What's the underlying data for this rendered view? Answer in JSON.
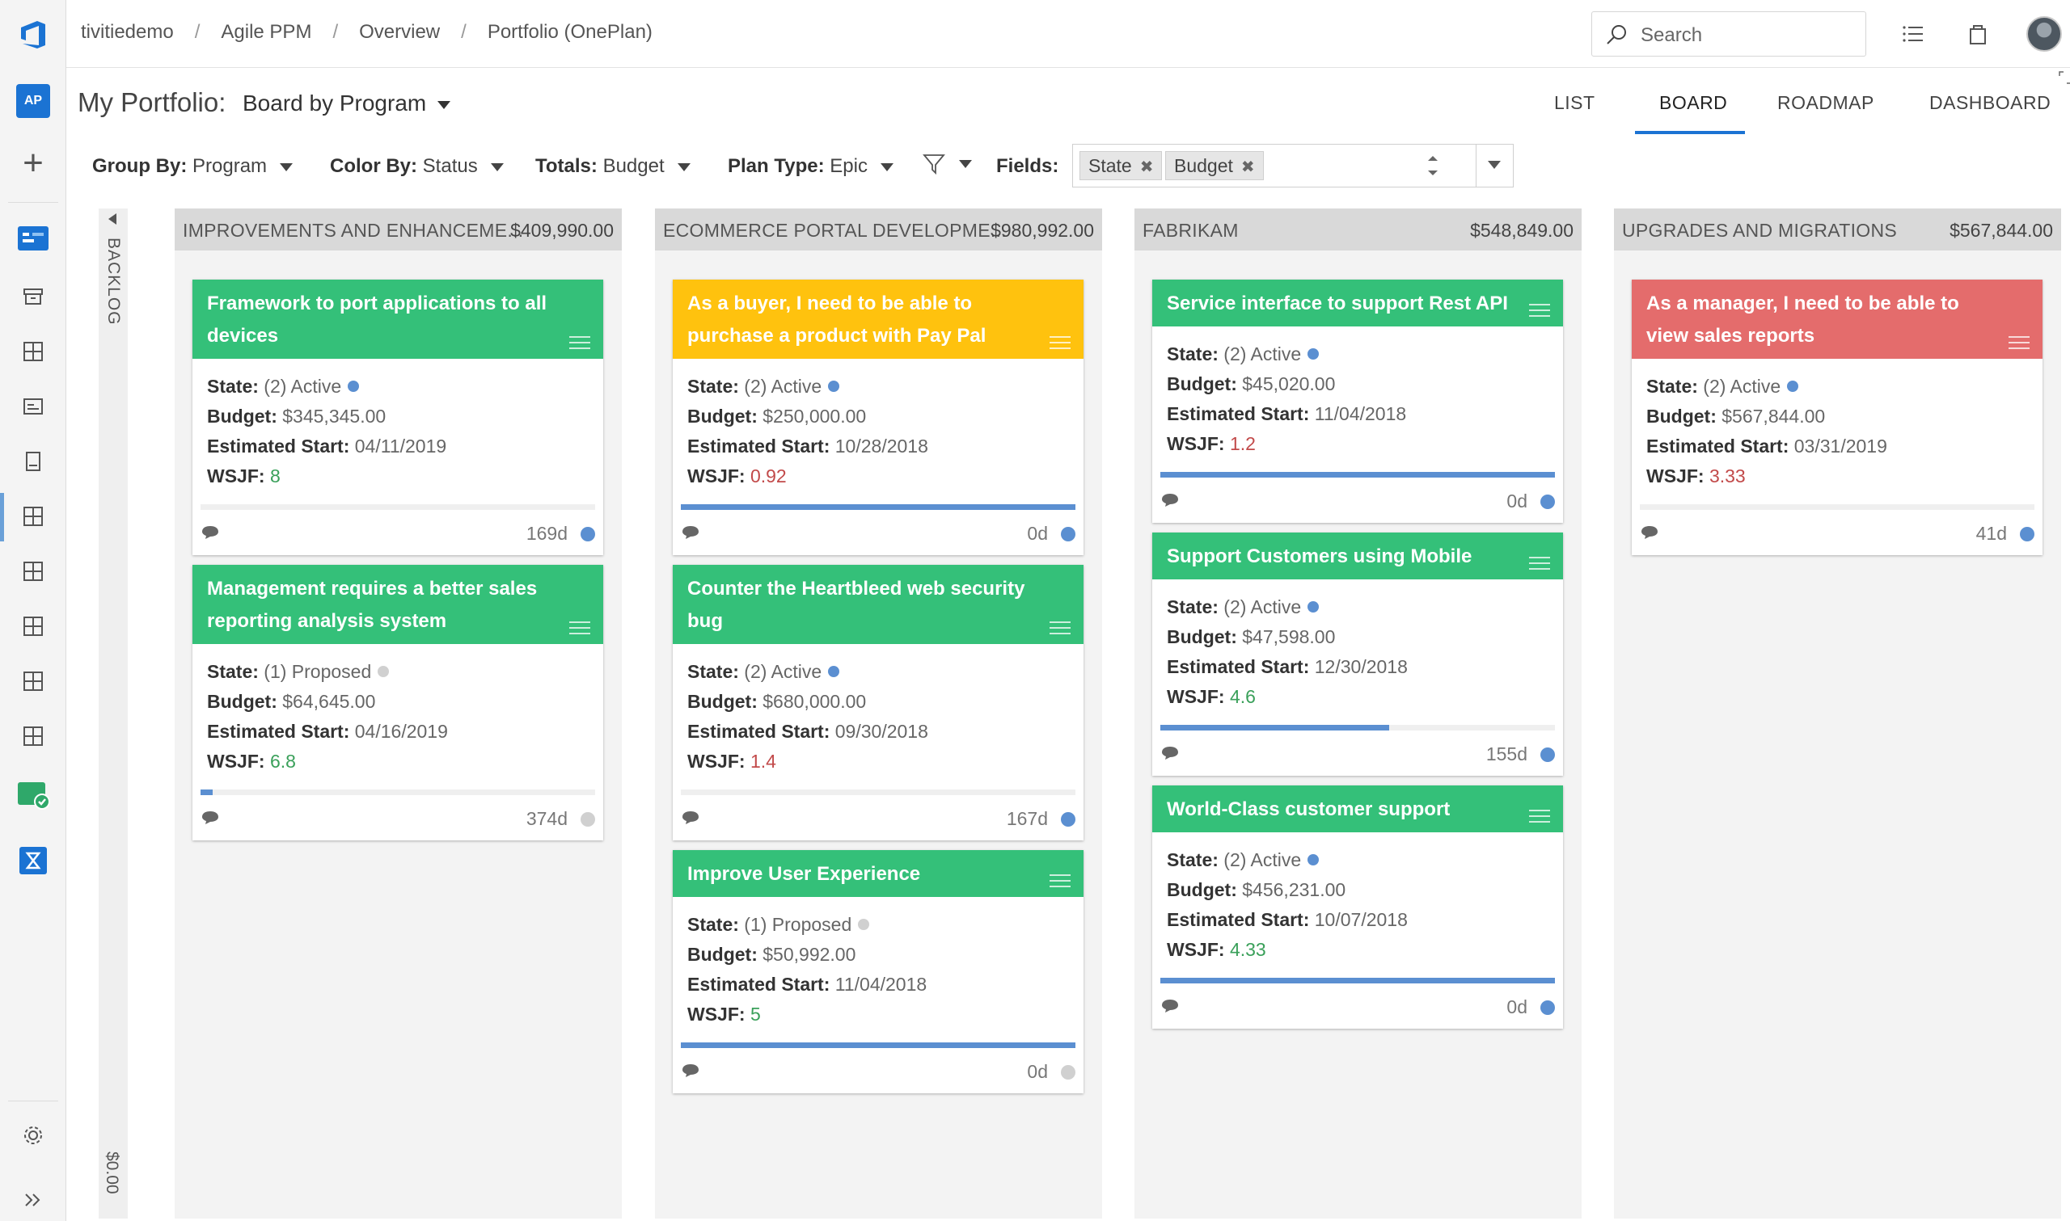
{
  "breadcrumbs": [
    "tivitiedemo",
    "Agile PPM",
    "Overview",
    "Portfolio (OnePlan)"
  ],
  "search": {
    "placeholder": "Search"
  },
  "project_badge": "AP",
  "header": {
    "title": "My Portfolio:",
    "view": "Board by Program",
    "tabs": [
      "LIST",
      "BOARD",
      "ROADMAP",
      "DASHBOARD"
    ],
    "active_tab": "BOARD"
  },
  "filters": {
    "group_by_label": "Group By:",
    "group_by_value": "Program",
    "color_by_label": "Color By:",
    "color_by_value": "Status",
    "totals_label": "Totals:",
    "totals_value": "Budget",
    "plan_type_label": "Plan Type:",
    "plan_type_value": "Epic",
    "fields_label": "Fields:",
    "field_chips": [
      "State",
      "Budget"
    ]
  },
  "backlog": {
    "label": "BACKLOG",
    "amount": "$0.00"
  },
  "labels": {
    "state": "State:",
    "budget": "Budget:",
    "start": "Estimated Start:",
    "wsjf": "WSJF:"
  },
  "colors": {
    "green": "#34c079",
    "yellow": "#ffc20e",
    "red": "#e46c6c",
    "active_dot": "#5b8fd1",
    "proposed_dot": "#d0d0d0",
    "accent": "#1b73d3"
  },
  "columns": [
    {
      "name": "IMPROVEMENTS AND ENHANCEME...",
      "amount": "$409,990.00",
      "cards": [
        {
          "title": "Framework to port applications to all devices",
          "state": "(2) Active",
          "budget": "$345,345.00",
          "start": "04/11/2019",
          "wsjf": "8",
          "days": "169d",
          "progress": 0
        },
        {
          "title": "Management requires a better sales reporting analysis system",
          "state": "(1) Proposed",
          "budget": "$64,645.00",
          "start": "04/16/2019",
          "wsjf": "6.8",
          "days": "374d",
          "progress": 0.03
        }
      ]
    },
    {
      "name": "ECOMMERCE PORTAL DEVELOPME...",
      "amount": "$980,992.00",
      "cards": [
        {
          "title": "As a buyer, I need to be able to purchase a product with Pay Pal",
          "state": "(2) Active",
          "budget": "$250,000.00",
          "start": "10/28/2018",
          "wsjf": "0.92",
          "days": "0d",
          "progress": 1
        },
        {
          "title": "Counter the Heartbleed web security bug",
          "state": "(2) Active",
          "budget": "$680,000.00",
          "start": "09/30/2018",
          "wsjf": "1.4",
          "days": "167d",
          "progress": 0
        },
        {
          "title": "Improve User Experience",
          "state": "(1) Proposed",
          "budget": "$50,992.00",
          "start": "11/04/2018",
          "wsjf": "5",
          "days": "0d",
          "progress": 1
        }
      ]
    },
    {
      "name": "FABRIKAM",
      "amount": "$548,849.00",
      "cards": [
        {
          "title": "Service interface to support Rest API",
          "state": "(2) Active",
          "budget": "$45,020.00",
          "start": "11/04/2018",
          "wsjf": "1.2",
          "days": "0d",
          "progress": 1
        },
        {
          "title": "Support Customers using Mobile",
          "state": "(2) Active",
          "budget": "$47,598.00",
          "start": "12/30/2018",
          "wsjf": "4.6",
          "days": "155d",
          "progress": 0.58
        },
        {
          "title": "World-Class customer support",
          "state": "(2) Active",
          "budget": "$456,231.00",
          "start": "10/07/2018",
          "wsjf": "4.33",
          "days": "0d",
          "progress": 1
        }
      ]
    },
    {
      "name": "UPGRADES AND MIGRATIONS",
      "amount": "$567,844.00",
      "cards": [
        {
          "title": "As a manager, I need to be able to view sales reports",
          "state": "(2) Active",
          "budget": "$567,844.00",
          "start": "03/31/2019",
          "wsjf": "3.33",
          "days": "41d",
          "progress": 0
        }
      ]
    }
  ]
}
